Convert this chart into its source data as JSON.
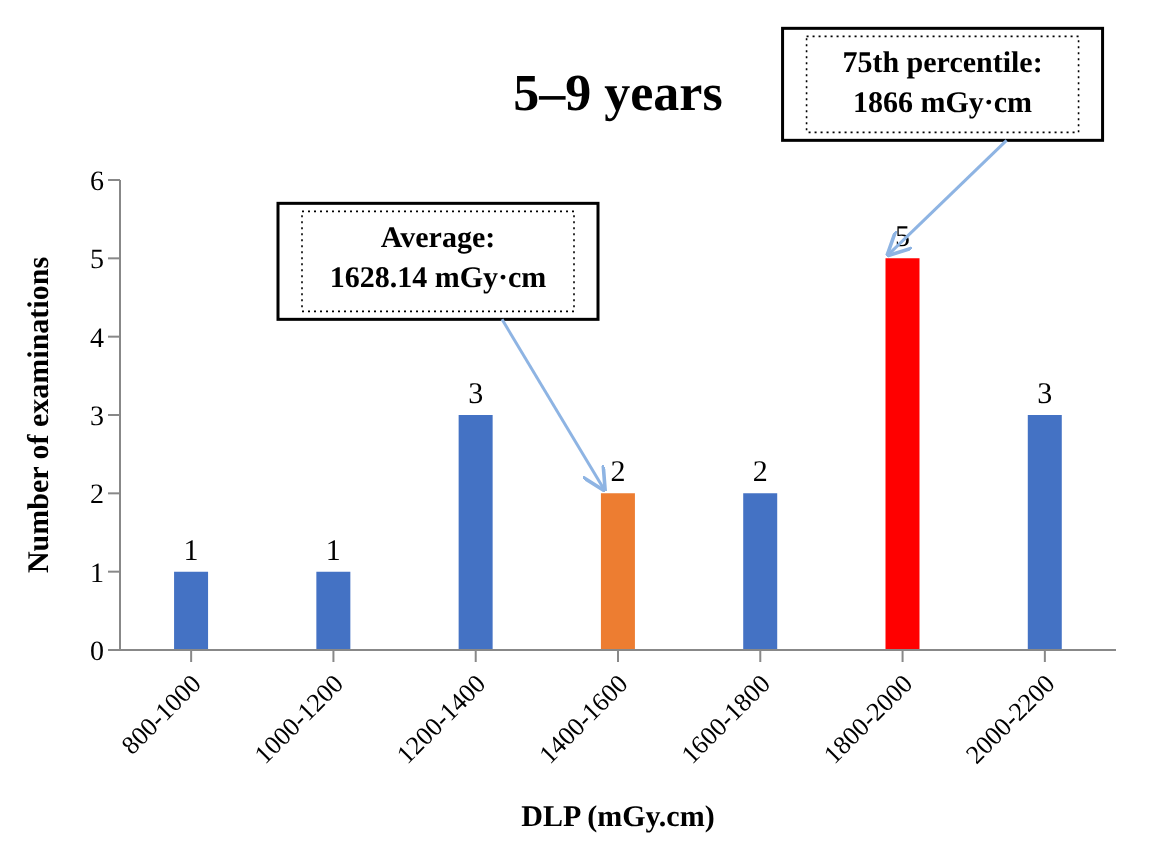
{
  "chart_data": {
    "type": "bar",
    "title": "5–9 years",
    "xlabel": "DLP (mGy.cm)",
    "ylabel": "Number of examinations",
    "categories": [
      "800-1000",
      "1000-1200",
      "1200-1400",
      "1400-1600",
      "1600-1800",
      "1800-2000",
      "2000-2200"
    ],
    "values": [
      1,
      1,
      3,
      2,
      2,
      5,
      3
    ],
    "colors": [
      "#4472c4",
      "#4472c4",
      "#4472c4",
      "#ed7d31",
      "#4472c4",
      "#ff0000",
      "#4472c4"
    ],
    "ylim": [
      0,
      6
    ],
    "yticks": [
      0,
      1,
      2,
      3,
      4,
      5,
      6
    ],
    "data_labels": true,
    "grid": false,
    "legend": false,
    "annotations": [
      {
        "text": "Average: 1628.14 mGy·cm",
        "x": "1400-1600",
        "y": 2
      },
      {
        "text": "75th percentile: 1866 mGy·cm",
        "x": "1800-2000",
        "y": 5
      }
    ]
  }
}
